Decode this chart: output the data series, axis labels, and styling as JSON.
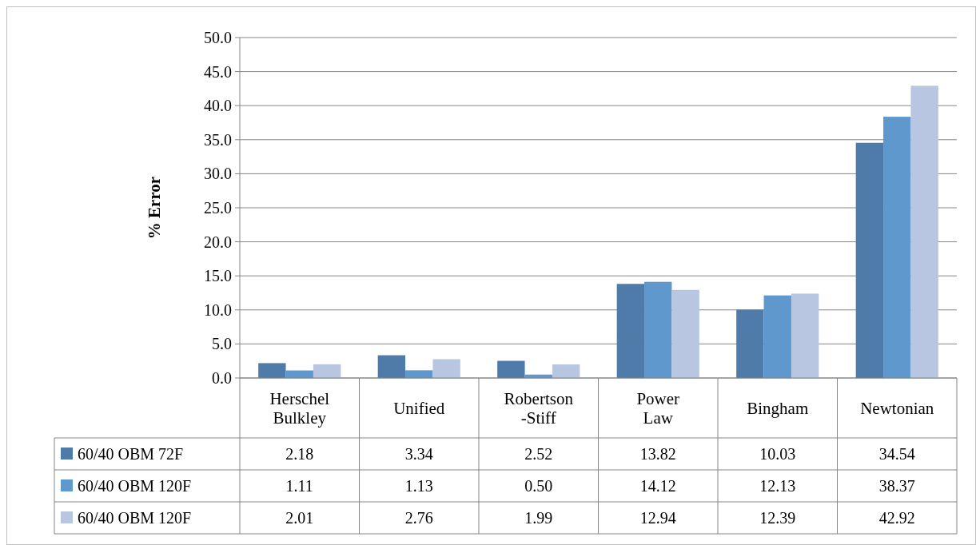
{
  "chart_data": {
    "type": "bar",
    "ylabel": "% Error",
    "categories": [
      "Herschel\nBulkley",
      "Unified",
      "Robertson\n-Stiff",
      "Power\nLaw",
      "Bingham",
      "Newtonian"
    ],
    "series": [
      {
        "name": "60/40 OBM 72F",
        "color": "#4f7bab",
        "values": [
          2.18,
          3.34,
          2.52,
          13.82,
          10.03,
          34.54
        ],
        "value_labels": [
          "2.18",
          "3.34",
          "2.52",
          "13.82",
          "10.03",
          "34.54"
        ]
      },
      {
        "name": "60/40 OBM 120F",
        "color": "#5f98cc",
        "values": [
          1.11,
          1.13,
          0.5,
          14.12,
          12.13,
          38.37
        ],
        "value_labels": [
          "1.11",
          "1.13",
          "0.50",
          "14.12",
          "12.13",
          "38.37"
        ]
      },
      {
        "name": "60/40 OBM 120F",
        "color": "#b8c6e2",
        "values": [
          2.01,
          2.76,
          1.99,
          12.94,
          12.39,
          42.92
        ],
        "value_labels": [
          "2.01",
          "2.76",
          "1.99",
          "12.94",
          "12.39",
          "42.92"
        ]
      }
    ],
    "ylim": [
      0,
      50
    ],
    "yticks": [
      {
        "value": 0,
        "label": "0.0"
      },
      {
        "value": 5,
        "label": "5.0"
      },
      {
        "value": 10,
        "label": "10.0"
      },
      {
        "value": 15,
        "label": "15.0"
      },
      {
        "value": 20,
        "label": "20.0"
      },
      {
        "value": 25,
        "label": "25.0"
      },
      {
        "value": 30,
        "label": "30.0"
      },
      {
        "value": 35,
        "label": "35.0"
      },
      {
        "value": 40,
        "label": "40.0"
      },
      {
        "value": 45,
        "label": "45.0"
      },
      {
        "value": 50,
        "label": "50.0"
      }
    ],
    "grid": "y",
    "legend": "bottom"
  }
}
